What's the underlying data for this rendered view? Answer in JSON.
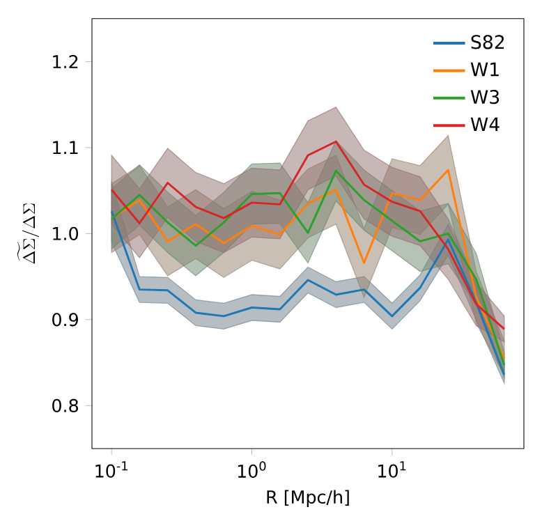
{
  "chart_data": {
    "type": "line",
    "xlabel": "R [Mpc/h]",
    "ylabel": "\\widetilde{\\Delta\\Sigma}/\\Delta\\Sigma",
    "log": "x",
    "legend": "top right",
    "x": [
      0.1,
      0.158,
      0.251,
      0.398,
      0.631,
      1.0,
      1.585,
      2.512,
      3.981,
      6.31,
      10.0,
      15.85,
      25.12,
      39.81,
      63.1
    ],
    "xlim": [
      0.0724,
      87.1
    ],
    "ylim": [
      0.75,
      1.25
    ],
    "xticks": [
      {
        "value": 0.1,
        "label": "10$^{-1}$"
      },
      {
        "value": 1,
        "label": "10$^{0}$"
      },
      {
        "value": 10,
        "label": "10$^{1}$"
      }
    ],
    "yticks": [
      0.8,
      0.9,
      {
        "value": 1.0,
        "label": "1.0"
      },
      1.1,
      1.2
    ],
    "series": [
      {
        "name": "S82",
        "color": "#1f77b4",
        "values": [
          1.026,
          0.935,
          0.934,
          0.908,
          0.904,
          0.914,
          0.912,
          0.946,
          0.929,
          0.935,
          0.904,
          0.937,
          0.993,
          0.92,
          0.836
        ],
        "lower": [
          0.99,
          0.92,
          0.919,
          0.893,
          0.889,
          0.899,
          0.897,
          0.931,
          0.914,
          0.92,
          0.889,
          0.922,
          0.975,
          0.9,
          0.826
        ],
        "upper": [
          1.06,
          0.95,
          0.949,
          0.923,
          0.919,
          0.929,
          0.927,
          0.961,
          0.944,
          0.95,
          0.919,
          0.952,
          1.011,
          0.94,
          0.846
        ]
      },
      {
        "name": "W1",
        "color": "#ff7f0e",
        "values": [
          1.018,
          1.039,
          0.991,
          1.011,
          0.989,
          1.009,
          0.999,
          1.035,
          1.051,
          0.966,
          1.047,
          1.039,
          1.074,
          0.926,
          0.855
        ],
        "lower": [
          0.978,
          0.999,
          0.951,
          0.971,
          0.949,
          0.969,
          0.959,
          0.995,
          1.011,
          0.926,
          1.007,
          0.999,
          1.034,
          0.896,
          0.835
        ],
        "upper": [
          1.058,
          1.079,
          1.031,
          1.051,
          1.029,
          1.049,
          1.039,
          1.075,
          1.091,
          1.006,
          1.087,
          1.079,
          1.114,
          0.956,
          0.875
        ]
      },
      {
        "name": "W3",
        "color": "#2ca02c",
        "values": [
          1.017,
          1.045,
          1.013,
          0.986,
          1.013,
          1.046,
          1.047,
          1.001,
          1.073,
          1.039,
          1.015,
          0.991,
          1.0,
          0.947,
          0.847
        ],
        "lower": [
          0.982,
          1.01,
          0.978,
          0.951,
          0.978,
          1.011,
          1.012,
          0.966,
          1.038,
          1.004,
          0.98,
          0.956,
          0.965,
          0.917,
          0.832
        ],
        "upper": [
          1.052,
          1.08,
          1.048,
          1.021,
          1.048,
          1.081,
          1.082,
          1.036,
          1.108,
          1.074,
          1.05,
          1.026,
          1.035,
          0.977,
          0.862
        ]
      },
      {
        "name": "W4",
        "color": "#d62728",
        "values": [
          1.051,
          1.012,
          1.059,
          1.031,
          1.018,
          1.036,
          1.034,
          1.091,
          1.107,
          1.057,
          1.037,
          1.026,
          0.982,
          0.918,
          0.889
        ],
        "lower": [
          1.011,
          0.972,
          1.019,
          0.991,
          0.978,
          0.996,
          0.994,
          1.051,
          1.067,
          1.017,
          0.997,
          0.986,
          0.947,
          0.893,
          0.874
        ],
        "upper": [
          1.091,
          1.052,
          1.099,
          1.071,
          1.058,
          1.076,
          1.074,
          1.131,
          1.147,
          1.097,
          1.077,
          1.066,
          1.017,
          0.943,
          0.904
        ]
      }
    ]
  }
}
